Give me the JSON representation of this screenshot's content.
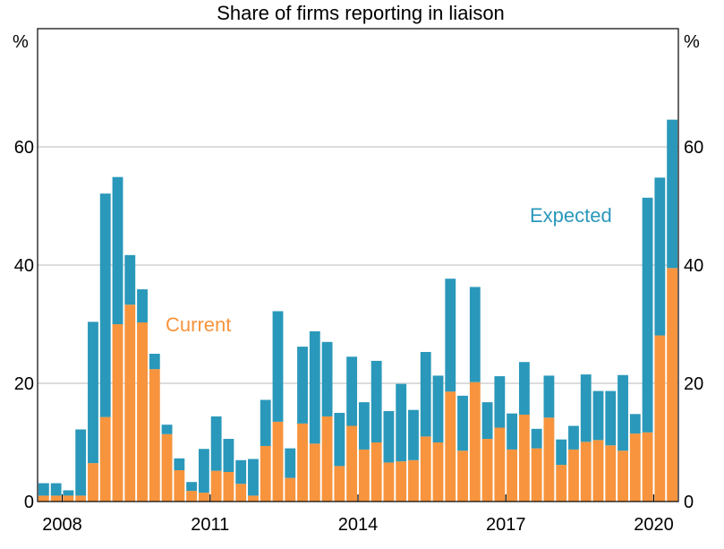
{
  "chart_data": {
    "type": "bar",
    "stacked": true,
    "title": "Share of firms reporting in liaison",
    "y_unit": "%",
    "ylim": [
      0,
      80
    ],
    "yticks": [
      0,
      20,
      40,
      60
    ],
    "xticks": [
      "2008",
      "2011",
      "2014",
      "2017",
      "2020"
    ],
    "xtick_positions": [
      1.5,
      13.5,
      25.5,
      37.5,
      49.5
    ],
    "grid": true,
    "series": [
      {
        "name": "Current",
        "color": "#f7943d",
        "values": [
          1,
          1,
          1,
          1,
          6.5,
          14.3,
          30,
          33.3,
          30.3,
          22.4,
          11.4,
          5.3,
          1.8,
          1.5,
          5.2,
          5,
          3,
          1,
          9.4,
          13.5,
          4,
          13.2,
          9.8,
          14.4,
          6,
          12.8,
          8.8,
          10,
          6.6,
          6.8,
          7,
          11,
          10,
          18.6,
          8.6,
          20.2,
          10.6,
          12.5,
          8.8,
          14.7,
          9,
          14.2,
          6.2,
          8.8,
          10.1,
          10.4,
          9.5,
          8.6,
          11.5,
          11.7,
          28.1,
          39.5
        ]
      },
      {
        "name": "Expected",
        "color": "#2a98ba",
        "values": [
          2.1,
          2.1,
          0.9,
          11.2,
          23.9,
          37.8,
          24.9,
          8.4,
          5.6,
          2.6,
          1.6,
          2,
          1.5,
          7.4,
          9.2,
          5.6,
          4,
          6.2,
          7.8,
          18.7,
          5,
          13,
          19,
          12.6,
          9,
          11.7,
          8,
          13.8,
          8.7,
          13.1,
          8.5,
          14.3,
          11.3,
          19.1,
          9.3,
          16.1,
          6.2,
          8.7,
          6.1,
          8.9,
          3.3,
          7.1,
          4.3,
          4,
          11.4,
          8.3,
          9.2,
          12.8,
          3.3,
          39.7,
          26.7,
          25.1
        ]
      }
    ]
  }
}
